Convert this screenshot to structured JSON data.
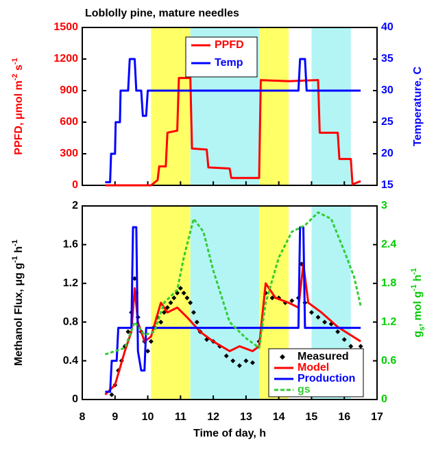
{
  "chart_data": [
    {
      "type": "line",
      "title": "Loblolly pine, mature needles",
      "ylabel": [
        {
          "text": "PPFD, μmol m"
        },
        {
          "text": "-2",
          "shift": "super"
        },
        {
          "text": " s"
        },
        {
          "text": "-1",
          "shift": "super"
        }
      ],
      "ylabel_color": "#ff0000",
      "y2label": [
        {
          "text": "Temperature, C"
        }
      ],
      "y2label_color": "#0000ff",
      "xlim": [
        8,
        17
      ],
      "xticks": [
        8,
        9,
        10,
        11,
        12,
        13,
        14,
        15,
        16,
        17
      ],
      "ylim": [
        0,
        1500
      ],
      "yticks": [
        0,
        300,
        600,
        900,
        1200,
        1500
      ],
      "y2lim": [
        15,
        40
      ],
      "y2ticks": [
        15,
        20,
        25,
        30,
        35,
        40
      ],
      "legend": "top-center",
      "bands": [
        {
          "from": 10.1,
          "to": 11.3,
          "color": "#ffff66"
        },
        {
          "from": 11.3,
          "to": 13.4,
          "color": "#b3f5f5"
        },
        {
          "from": 13.4,
          "to": 14.3,
          "color": "#ffff66"
        },
        {
          "from": 15.0,
          "to": 16.2,
          "color": "#b3f5f5"
        }
      ],
      "series": [
        {
          "name": "PPFD",
          "color": "#ff0000",
          "style": "line",
          "x": [
            8.7,
            10.1,
            10.3,
            10.35,
            10.55,
            10.6,
            10.9,
            10.95,
            11.3,
            11.35,
            11.8,
            11.85,
            12.5,
            12.55,
            13.4,
            13.45,
            14.3,
            15.2,
            15.25,
            15.8,
            15.85,
            16.2,
            16.25,
            16.5
          ],
          "values": [
            0,
            0,
            50,
            180,
            180,
            500,
            520,
            1020,
            1020,
            350,
            340,
            170,
            160,
            70,
            70,
            1000,
            990,
            1000,
            500,
            500,
            250,
            250,
            10,
            40
          ]
        },
        {
          "name": "Temp",
          "color": "#0000ff",
          "style": "line",
          "axis": "y2",
          "x": [
            8.7,
            8.85,
            8.88,
            9.0,
            9.02,
            9.15,
            9.17,
            9.4,
            9.45,
            9.6,
            9.65,
            9.8,
            9.85,
            9.95,
            10.0,
            14.6,
            14.65,
            14.8,
            14.85,
            16.5
          ],
          "values": [
            15.5,
            15.5,
            20,
            20,
            25,
            25,
            30,
            30,
            35,
            35,
            30,
            30,
            26,
            26,
            30,
            30,
            35,
            35,
            30,
            30
          ]
        }
      ]
    },
    {
      "type": "line",
      "xlabel": "Time of day, h",
      "ylabel": [
        {
          "text": "Methanol Flux, μg g"
        },
        {
          "text": "-1",
          "shift": "super"
        },
        {
          "text": " h"
        },
        {
          "text": "-1",
          "shift": "super"
        }
      ],
      "ylabel_color": "#000000",
      "y2label": [
        {
          "text": "g"
        },
        {
          "text": "s",
          "shift": "sub"
        },
        {
          "text": ", mol g"
        },
        {
          "text": "-1",
          "shift": "super"
        },
        {
          "text": " h"
        },
        {
          "text": "-1",
          "shift": "super"
        }
      ],
      "y2label_color": "#00cc00",
      "xlim": [
        8,
        17
      ],
      "xticks": [
        8,
        9,
        10,
        11,
        12,
        13,
        14,
        15,
        16,
        17
      ],
      "ylim": [
        0,
        2
      ],
      "yticks": [
        0,
        0.4,
        0.8,
        1.2,
        1.6,
        2
      ],
      "y2lim": [
        0,
        3
      ],
      "y2ticks": [
        0,
        0.6,
        1.2,
        1.8,
        2.4,
        3
      ],
      "legend": "bottom-right",
      "bands": [
        {
          "from": 10.1,
          "to": 11.3,
          "color": "#ffff66"
        },
        {
          "from": 11.3,
          "to": 13.4,
          "color": "#b3f5f5"
        },
        {
          "from": 13.4,
          "to": 14.3,
          "color": "#ffff66"
        },
        {
          "from": 15.0,
          "to": 16.2,
          "color": "#b3f5f5"
        }
      ],
      "series": [
        {
          "name": "Measured",
          "color": "#000000",
          "style": "markers",
          "x": [
            8.9,
            9.0,
            9.1,
            9.2,
            9.3,
            9.4,
            9.5,
            9.6,
            9.65,
            9.7,
            9.8,
            9.9,
            10.0,
            10.1,
            10.2,
            10.3,
            10.4,
            10.5,
            10.6,
            10.7,
            10.8,
            10.9,
            11.0,
            11.1,
            11.2,
            11.3,
            11.4,
            11.5,
            11.6,
            11.8,
            12.0,
            12.2,
            12.4,
            12.6,
            12.8,
            13.0,
            13.2,
            13.4,
            13.6,
            13.8,
            14.0,
            14.2,
            14.4,
            14.6,
            14.7,
            14.8,
            15.0,
            15.2,
            15.4,
            15.6,
            15.8,
            16.0,
            16.2,
            16.4,
            16.5
          ],
          "values": [
            0.05,
            0.15,
            0.3,
            0.4,
            0.55,
            0.7,
            0.9,
            1.25,
            1.1,
            0.85,
            0.7,
            0.6,
            0.5,
            0.6,
            0.75,
            0.85,
            0.8,
            0.9,
            0.95,
            1.0,
            1.05,
            1.1,
            1.15,
            1.1,
            1.05,
            1.0,
            0.9,
            0.8,
            0.7,
            0.62,
            0.6,
            0.55,
            0.45,
            0.4,
            0.35,
            0.4,
            0.38,
            0.6,
            1.1,
            1.05,
            1.05,
            1.0,
            1.02,
            1.05,
            1.4,
            1.0,
            0.9,
            0.85,
            0.8,
            0.78,
            0.7,
            0.62,
            0.55,
            0.5,
            0.55
          ]
        },
        {
          "name": "Model",
          "color": "#ff0000",
          "style": "line",
          "x": [
            8.7,
            9.0,
            9.3,
            9.5,
            9.6,
            9.7,
            9.9,
            10.1,
            10.4,
            10.6,
            10.9,
            11.2,
            11.6,
            12.0,
            12.5,
            12.8,
            13.2,
            13.4,
            13.6,
            13.9,
            14.3,
            14.6,
            14.75,
            14.9,
            15.3,
            15.8,
            16.5
          ],
          "values": [
            0.05,
            0.15,
            0.5,
            0.7,
            1.15,
            0.8,
            0.6,
            0.65,
            1.0,
            0.9,
            0.95,
            0.85,
            0.7,
            0.6,
            0.5,
            0.55,
            0.5,
            0.55,
            1.2,
            1.05,
            1.0,
            0.95,
            1.4,
            1.0,
            0.9,
            0.75,
            0.6
          ]
        },
        {
          "name": "Production",
          "color": "#0000ff",
          "style": "line",
          "x": [
            8.7,
            8.85,
            8.9,
            9.05,
            9.1,
            9.5,
            9.55,
            9.65,
            9.7,
            9.8,
            9.9,
            9.95,
            14.6,
            14.65,
            14.75,
            14.8,
            16.5
          ],
          "values": [
            0.08,
            0.08,
            0.4,
            0.4,
            0.74,
            0.74,
            1.78,
            1.78,
            0.5,
            0.3,
            0.3,
            0.74,
            0.74,
            1.78,
            1.78,
            0.74,
            0.74
          ]
        },
        {
          "name": "gs",
          "color": "#33cc33",
          "style": "dashed",
          "axis": "y2",
          "x": [
            8.7,
            9.0,
            9.3,
            9.6,
            9.9,
            10.2,
            10.5,
            10.9,
            11.1,
            11.4,
            11.7,
            12.0,
            12.5,
            13.0,
            13.4,
            13.6,
            14.0,
            14.4,
            14.8,
            15.2,
            15.6,
            16.0,
            16.3,
            16.5
          ],
          "values": [
            0.7,
            0.75,
            0.8,
            1.2,
            1.0,
            1.05,
            1.5,
            1.7,
            2.2,
            2.8,
            2.6,
            2.0,
            1.2,
            0.95,
            0.8,
            1.5,
            2.2,
            2.6,
            2.7,
            2.9,
            2.8,
            2.3,
            1.9,
            1.45
          ]
        }
      ]
    }
  ]
}
